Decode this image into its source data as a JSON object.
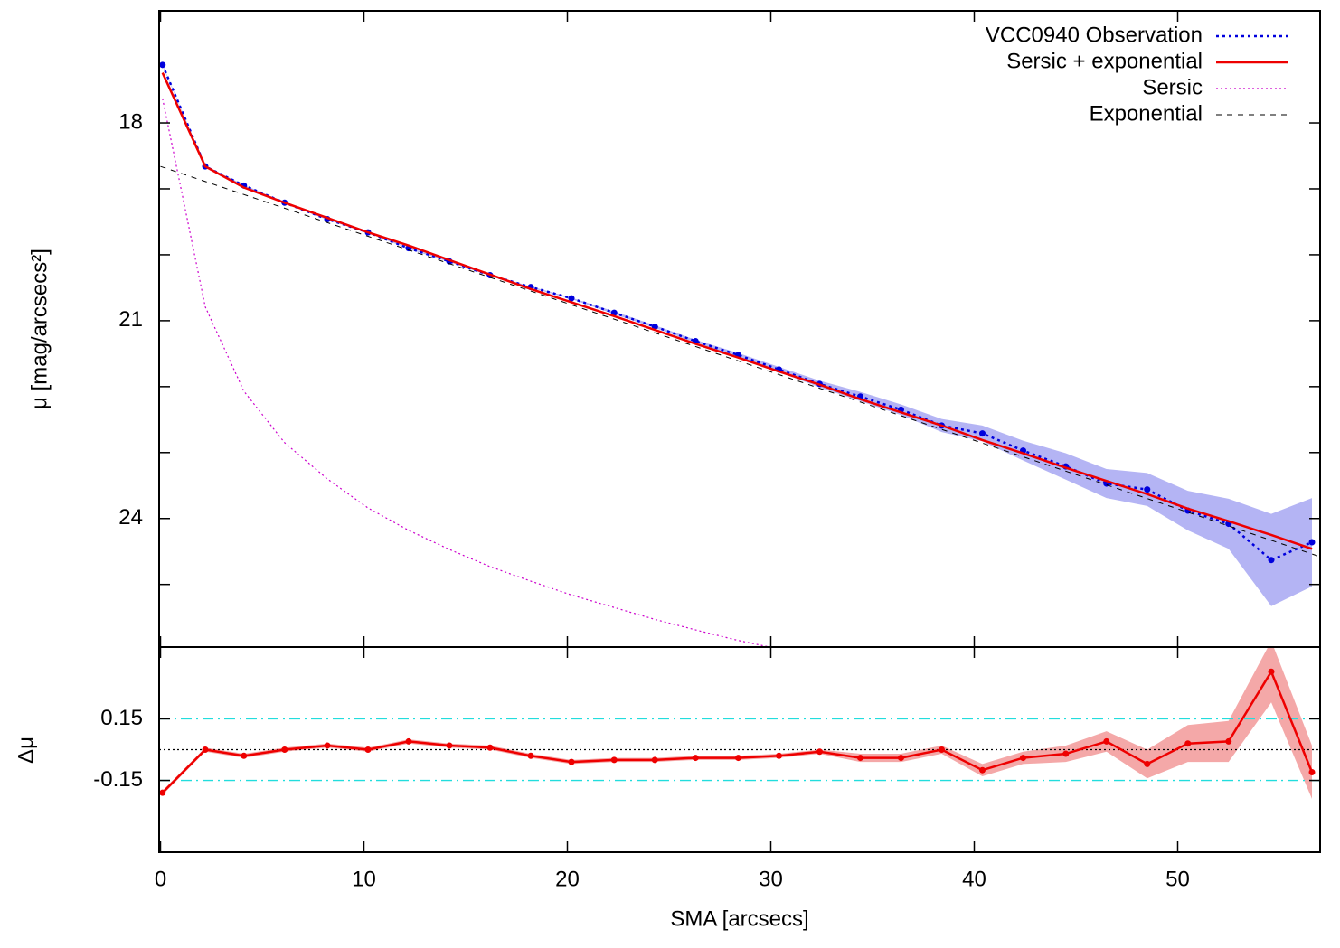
{
  "chart_data": [
    {
      "type": "line",
      "ylabel": "μ [mag/arcsecs²]",
      "xlim": [
        0,
        57
      ],
      "xticks": [
        0,
        10,
        20,
        30,
        40,
        50
      ],
      "ylim": [
        25.95,
        16.3
      ],
      "yticks": [
        18,
        21,
        24
      ],
      "yminor_ticks": [
        19,
        20,
        22,
        23,
        25
      ],
      "legend": "top-right",
      "series": [
        {
          "name": "VCC0940 Observation",
          "color": "#0000dd",
          "style": "dotted",
          "markers": true,
          "band_color": "#b4b4f4",
          "x": [
            0.1,
            2.2,
            4.1,
            6.1,
            8.2,
            10.2,
            12.2,
            14.2,
            16.2,
            18.2,
            20.2,
            22.3,
            24.3,
            26.3,
            28.4,
            30.4,
            32.4,
            34.4,
            36.4,
            38.4,
            40.4,
            42.4,
            44.5,
            46.5,
            48.5,
            50.5,
            52.5,
            54.6,
            56.6
          ],
          "values": [
            17.12,
            18.66,
            18.95,
            19.21,
            19.46,
            19.66,
            19.9,
            20.1,
            20.31,
            20.49,
            20.66,
            20.88,
            21.09,
            21.31,
            21.52,
            21.74,
            21.96,
            22.15,
            22.35,
            22.59,
            22.71,
            22.97,
            23.21,
            23.47,
            23.56,
            23.88,
            24.08,
            24.63,
            24.36
          ],
          "errors": [
            0.01,
            0.01,
            0.01,
            0.01,
            0.01,
            0.01,
            0.01,
            0.01,
            0.01,
            0.01,
            0.01,
            0.02,
            0.02,
            0.02,
            0.03,
            0.04,
            0.05,
            0.07,
            0.08,
            0.1,
            0.12,
            0.15,
            0.2,
            0.22,
            0.25,
            0.3,
            0.38,
            0.7,
            0.67
          ]
        },
        {
          "name": "Sersic + exponential",
          "color": "#ee0000",
          "style": "solid",
          "x": [
            0.1,
            2.2,
            4.1,
            6.1,
            8.2,
            10.2,
            12.2,
            14.2,
            16.2,
            18.2,
            20.2,
            22.3,
            24.3,
            26.3,
            28.4,
            30.4,
            32.4,
            34.4,
            36.4,
            38.4,
            40.4,
            42.4,
            44.5,
            46.5,
            48.5,
            50.5,
            52.5,
            54.6,
            56.6
          ],
          "values": [
            17.24,
            18.66,
            18.98,
            19.21,
            19.44,
            19.66,
            19.86,
            20.08,
            20.3,
            20.52,
            20.72,
            20.93,
            21.14,
            21.35,
            21.56,
            21.77,
            21.97,
            22.19,
            22.39,
            22.59,
            22.81,
            23.01,
            23.23,
            23.43,
            23.63,
            23.85,
            24.04,
            24.25,
            24.46
          ]
        },
        {
          "name": "Sersic",
          "color": "#cc00cc",
          "style": "fine-dotted",
          "x": [
            0.1,
            2.2,
            4.1,
            6.1,
            8.2,
            10.2,
            12.2,
            14.2,
            16.2,
            18.2,
            20.2,
            22.3,
            24.3,
            26.3,
            28.4,
            30.4
          ],
          "values": [
            17.63,
            20.79,
            22.07,
            22.85,
            23.4,
            23.84,
            24.18,
            24.47,
            24.73,
            24.95,
            25.16,
            25.35,
            25.53,
            25.69,
            25.85,
            25.98
          ]
        },
        {
          "name": "Exponential",
          "color": "#000000",
          "style": "dashed",
          "x": [
            0,
            57
          ],
          "values": [
            18.66,
            24.58
          ]
        }
      ]
    },
    {
      "type": "line",
      "ylabel": "Δμ",
      "xlabel": "SMA [arcsecs]",
      "xlim": [
        0,
        57
      ],
      "xticks": [
        0,
        10,
        20,
        30,
        40,
        50
      ],
      "ylim": [
        -0.5,
        0.5
      ],
      "yticks": [
        0.15,
        -0.15
      ],
      "hlines": [
        {
          "value": 0.15,
          "color": "#22dddd",
          "style": "dashdot"
        },
        {
          "value": -0.15,
          "color": "#22dddd",
          "style": "dashdot"
        },
        {
          "value": 0,
          "color": "#000000",
          "style": "fine-dotted"
        }
      ],
      "series": [
        {
          "color": "#ee0000",
          "style": "solid",
          "markers": true,
          "band_color": "#f4a8a8",
          "x": [
            0.1,
            2.2,
            4.1,
            6.1,
            8.2,
            10.2,
            12.2,
            14.2,
            16.2,
            18.2,
            20.2,
            22.3,
            24.3,
            26.3,
            28.4,
            30.4,
            32.4,
            34.4,
            36.4,
            38.4,
            40.4,
            42.4,
            44.5,
            46.5,
            48.5,
            50.5,
            52.5,
            54.6,
            56.6
          ],
          "values": [
            -0.21,
            0,
            -0.03,
            0,
            0.02,
            0,
            0.04,
            0.02,
            0.01,
            -0.03,
            -0.06,
            -0.05,
            -0.05,
            -0.04,
            -0.04,
            -0.03,
            -0.01,
            -0.04,
            -0.04,
            0,
            -0.1,
            -0.04,
            -0.02,
            0.04,
            -0.07,
            0.03,
            0.04,
            0.38,
            -0.11
          ],
          "errors": [
            0.01,
            0.01,
            0.01,
            0.01,
            0.01,
            0.01,
            0.01,
            0.01,
            0.01,
            0.01,
            0.01,
            0.01,
            0.01,
            0.01,
            0.01,
            0.01,
            0.01,
            0.02,
            0.02,
            0.02,
            0.03,
            0.03,
            0.04,
            0.05,
            0.07,
            0.09,
            0.1,
            0.15,
            0.13
          ]
        }
      ]
    }
  ]
}
